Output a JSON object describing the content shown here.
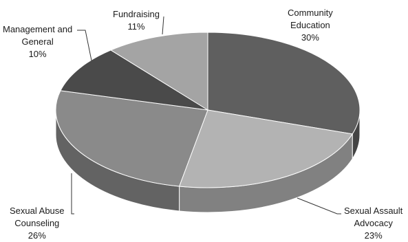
{
  "chart_data": {
    "type": "pie",
    "style": "3d-exploded-none",
    "title": "",
    "slices": [
      {
        "label_lines": [
          "Community",
          "Education"
        ],
        "value": 30,
        "value_label": "30%",
        "color": "#5f5f5f"
      },
      {
        "label_lines": [
          "Sexual Assault",
          "Advocacy"
        ],
        "value": 23,
        "value_label": "23%",
        "color": "#b3b3b3"
      },
      {
        "label_lines": [
          "Sexual Abuse",
          "Counseling"
        ],
        "value": 26,
        "value_label": "26%",
        "color": "#8a8a8a"
      },
      {
        "label_lines": [
          "Management and",
          "General"
        ],
        "value": 10,
        "value_label": "10%",
        "color": "#4a4a4a"
      },
      {
        "label_lines": [
          "Fundraising"
        ],
        "value": 11,
        "value_label": "11%",
        "color": "#a4a4a4"
      }
    ]
  }
}
